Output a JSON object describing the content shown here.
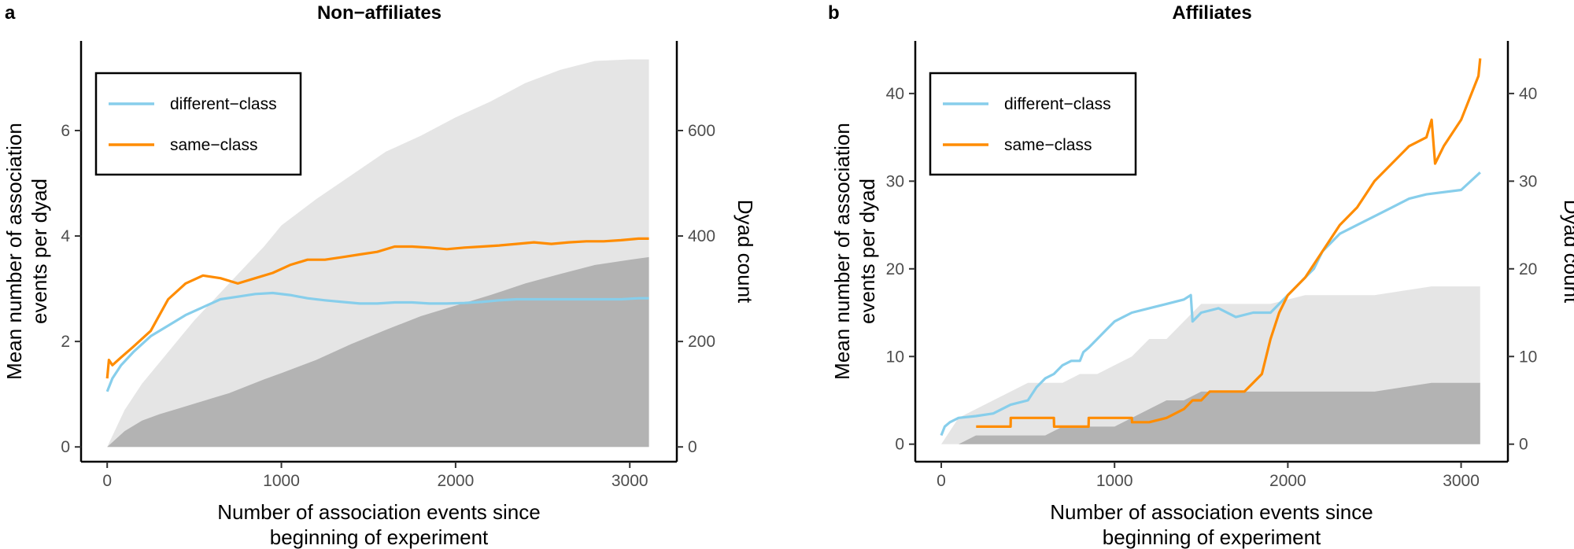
{
  "chart_data": [
    {
      "panel": "a",
      "type": "line",
      "title": "Non−affiliates",
      "xlabel": [
        "Number of association events since",
        "beginning of experiment"
      ],
      "ylabel": [
        "Mean number of association",
        "events per dyad"
      ],
      "y2label": "Dyad count",
      "xlim": [
        -150,
        3270
      ],
      "ylim": [
        -0.28,
        7.7
      ],
      "y2lim": [
        -28,
        770
      ],
      "xticks": [
        0,
        1000,
        2000,
        3000
      ],
      "yticks": [
        0,
        2,
        4,
        6
      ],
      "y2ticks": [
        0,
        200,
        400,
        600
      ],
      "legend": {
        "position": "top-left",
        "entries": [
          "different−class",
          "same−class"
        ]
      },
      "series": [
        {
          "name": "different−class",
          "color": "#87ceeb",
          "x": [
            0,
            30,
            80,
            150,
            250,
            350,
            450,
            550,
            650,
            750,
            850,
            950,
            1050,
            1150,
            1250,
            1350,
            1450,
            1550,
            1650,
            1750,
            1850,
            1950,
            2050,
            2150,
            2250,
            2350,
            2450,
            2550,
            2650,
            2750,
            2850,
            2950,
            3050,
            3110
          ],
          "y": [
            1.05,
            1.3,
            1.55,
            1.8,
            2.1,
            2.3,
            2.5,
            2.65,
            2.8,
            2.85,
            2.9,
            2.92,
            2.88,
            2.82,
            2.78,
            2.75,
            2.72,
            2.72,
            2.74,
            2.74,
            2.72,
            2.72,
            2.73,
            2.75,
            2.78,
            2.8,
            2.8,
            2.8,
            2.8,
            2.8,
            2.8,
            2.8,
            2.82,
            2.82
          ]
        },
        {
          "name": "same−class",
          "color": "#ff8c00",
          "x": [
            0,
            10,
            30,
            80,
            150,
            250,
            350,
            450,
            550,
            650,
            750,
            850,
            950,
            1050,
            1150,
            1250,
            1350,
            1450,
            1550,
            1650,
            1750,
            1850,
            1950,
            2050,
            2150,
            2250,
            2350,
            2450,
            2550,
            2650,
            2750,
            2850,
            2950,
            3050,
            3110
          ],
          "y": [
            1.3,
            1.65,
            1.55,
            1.7,
            1.9,
            2.2,
            2.8,
            3.1,
            3.25,
            3.2,
            3.1,
            3.2,
            3.3,
            3.45,
            3.55,
            3.55,
            3.6,
            3.65,
            3.7,
            3.8,
            3.8,
            3.78,
            3.75,
            3.78,
            3.8,
            3.82,
            3.85,
            3.88,
            3.85,
            3.88,
            3.9,
            3.9,
            3.92,
            3.95,
            3.95
          ]
        }
      ],
      "areas": [
        {
          "name": "same−class dyad count",
          "color": "#e5e5e5",
          "x": [
            0,
            100,
            200,
            300,
            400,
            500,
            600,
            700,
            800,
            900,
            1000,
            1200,
            1400,
            1600,
            1800,
            2000,
            2200,
            2400,
            2600,
            2800,
            3000,
            3110
          ],
          "y": [
            0,
            70,
            120,
            160,
            200,
            240,
            275,
            310,
            345,
            380,
            420,
            470,
            515,
            560,
            590,
            625,
            655,
            690,
            715,
            732,
            735,
            735
          ]
        },
        {
          "name": "different−class dyad count",
          "color": "#b3b3b3",
          "x": [
            0,
            100,
            200,
            300,
            400,
            500,
            600,
            700,
            800,
            900,
            1000,
            1200,
            1400,
            1600,
            1800,
            2000,
            2200,
            2400,
            2600,
            2800,
            3000,
            3110
          ],
          "y": [
            0,
            30,
            50,
            62,
            72,
            82,
            92,
            102,
            115,
            128,
            140,
            165,
            195,
            222,
            248,
            268,
            288,
            310,
            328,
            345,
            355,
            360
          ]
        }
      ]
    },
    {
      "panel": "b",
      "type": "line",
      "title": "Affiliates",
      "xlabel": [
        "Number of association events since",
        "beginning of experiment"
      ],
      "ylabel": [
        "Mean number of association",
        "events per dyad"
      ],
      "y2label": "Dyad count",
      "xlim": [
        -150,
        3270
      ],
      "ylim": [
        -2,
        46
      ],
      "y2lim": [
        -2,
        46
      ],
      "xticks": [
        0,
        1000,
        2000,
        3000
      ],
      "yticks": [
        0,
        10,
        20,
        30,
        40
      ],
      "y2ticks": [
        0,
        10,
        20,
        30,
        40
      ],
      "legend": {
        "position": "top-left",
        "entries": [
          "different−class",
          "same−class"
        ]
      },
      "series": [
        {
          "name": "different−class",
          "color": "#87ceeb",
          "x": [
            0,
            20,
            50,
            100,
            200,
            300,
            400,
            500,
            550,
            600,
            650,
            700,
            750,
            800,
            820,
            850,
            900,
            950,
            1000,
            1050,
            1100,
            1200,
            1300,
            1400,
            1440,
            1450,
            1500,
            1600,
            1700,
            1800,
            1900,
            1950,
            2000,
            2050,
            2100,
            2150,
            2200,
            2300,
            2400,
            2500,
            2600,
            2700,
            2800,
            3000,
            3110
          ],
          "y": [
            1,
            2,
            2.5,
            3,
            3.2,
            3.5,
            4.5,
            5,
            6.5,
            7.5,
            8,
            9,
            9.5,
            9.5,
            10.5,
            11,
            12,
            13,
            14,
            14.5,
            15,
            15.5,
            16,
            16.5,
            17,
            14,
            15,
            15.5,
            14.5,
            15,
            15,
            16,
            17,
            18,
            19,
            20,
            22,
            24,
            25,
            26,
            27,
            28,
            28.5,
            29,
            31
          ]
        },
        {
          "name": "same−class",
          "color": "#ff8c00",
          "x": [
            0,
            200,
            201,
            400,
            401,
            650,
            651,
            850,
            851,
            1100,
            1101,
            1200,
            1300,
            1400,
            1450,
            1500,
            1550,
            1700,
            1750,
            1800,
            1850,
            1900,
            1950,
            2000,
            2100,
            2200,
            2300,
            2400,
            2500,
            2600,
            2700,
            2800,
            2830,
            2850,
            2900,
            3000,
            3100,
            3110
          ],
          "y": [
            null,
            null,
            2,
            2,
            3,
            3,
            2,
            2,
            3,
            3,
            2.5,
            2.5,
            3,
            4,
            5,
            5,
            6,
            6,
            6,
            7,
            8,
            12,
            15,
            17,
            19,
            22,
            25,
            27,
            30,
            32,
            34,
            35,
            37,
            32,
            34,
            37,
            42,
            44
          ]
        }
      ],
      "areas": [
        {
          "name": "same−class dyad count",
          "color": "#e5e5e5",
          "x": [
            0,
            100,
            200,
            300,
            400,
            500,
            600,
            700,
            800,
            900,
            1000,
            1100,
            1150,
            1200,
            1300,
            1400,
            1500,
            1700,
            1900,
            2100,
            2300,
            2500,
            2830,
            3000,
            3110
          ],
          "y": [
            0,
            3,
            4,
            5,
            6,
            7,
            7,
            7,
            8,
            8,
            9,
            10,
            11,
            12,
            12,
            14,
            16,
            16,
            16,
            17,
            17,
            17,
            18,
            18,
            18
          ]
        },
        {
          "name": "different−class dyad count",
          "color": "#b3b3b3",
          "x": [
            0,
            100,
            200,
            300,
            400,
            500,
            600,
            700,
            800,
            900,
            1000,
            1100,
            1200,
            1300,
            1400,
            1500,
            1700,
            1900,
            2100,
            2300,
            2500,
            2830,
            3000,
            3110
          ],
          "y": [
            0,
            0,
            1,
            1,
            1,
            1,
            1,
            2,
            2,
            2,
            2,
            3,
            4,
            5,
            5,
            6,
            6,
            6,
            6,
            6,
            6,
            7,
            7,
            7
          ]
        }
      ]
    }
  ]
}
